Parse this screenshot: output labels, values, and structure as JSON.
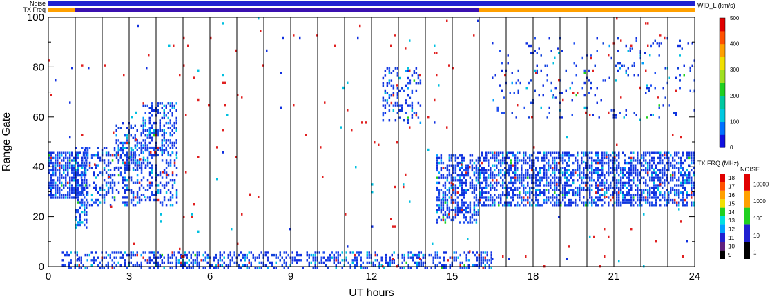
{
  "chart_data": {
    "type": "heatmap",
    "title": "",
    "xlabel": "UT hours",
    "ylabel": "Range Gate",
    "xlim": [
      0,
      24
    ],
    "ylim": [
      0,
      100
    ],
    "x_ticks": [
      0,
      3,
      6,
      9,
      12,
      15,
      18,
      21,
      24
    ],
    "y_ticks": [
      0,
      20,
      40,
      60,
      80,
      100
    ],
    "hour_dividers": [
      1,
      2,
      3,
      4,
      5,
      6,
      7,
      8,
      9,
      10,
      11,
      12,
      13,
      14,
      15,
      16,
      17,
      18,
      19,
      20,
      21,
      22,
      23
    ],
    "status_bars": [
      {
        "label": "Noise",
        "segments": [
          {
            "start": 0,
            "end": 24,
            "color": "#2020d0"
          }
        ]
      },
      {
        "label": "TX Freq",
        "segments": [
          {
            "start": 0,
            "end": 1,
            "color": "#ffa000"
          },
          {
            "start": 1,
            "end": 16,
            "color": "#3a10b0"
          },
          {
            "start": 16,
            "end": 24,
            "color": "#ffa000"
          }
        ]
      }
    ],
    "scatter_regions": [
      {
        "x": [
          0,
          1.1
        ],
        "y": [
          28,
          46
        ],
        "density": 0.75
      },
      {
        "x": [
          1.0,
          1.4
        ],
        "y": [
          16,
          48
        ],
        "density": 0.55
      },
      {
        "x": [
          1.2,
          4.8
        ],
        "y": [
          25,
          48
        ],
        "density": 0.35
      },
      {
        "x": [
          2.5,
          3.6
        ],
        "y": [
          40,
          58
        ],
        "density": 0.4
      },
      {
        "x": [
          3.5,
          4.8
        ],
        "y": [
          45,
          66
        ],
        "density": 0.45
      },
      {
        "x": [
          14.4,
          16.0
        ],
        "y": [
          18,
          45
        ],
        "density": 0.55
      },
      {
        "x": [
          16.0,
          24.0
        ],
        "y": [
          25,
          46
        ],
        "density": 0.6
      },
      {
        "x": [
          0.5,
          16.5
        ],
        "y": [
          0,
          6
        ],
        "density": 0.45
      },
      {
        "x": [
          12.4,
          13.8
        ],
        "y": [
          58,
          80
        ],
        "density": 0.25
      },
      {
        "x": [
          16.5,
          24.0
        ],
        "y": [
          60,
          92
        ],
        "density": 0.06
      },
      {
        "x": [
          0,
          24
        ],
        "y": [
          0,
          100
        ],
        "density": 0.008
      }
    ],
    "scatter_palette": [
      "#1030e0",
      "#2050f0",
      "#1040d8",
      "#00c0e0",
      "#00a0ff",
      "#e02020",
      "#20d020"
    ],
    "velocity_colorbar": {
      "label": "WID_L (km/s)",
      "range": [
        0,
        500
      ],
      "ticks": [
        0,
        100,
        200,
        300,
        400,
        500
      ],
      "colors": [
        "#1010e0",
        "#0070ff",
        "#00c8e0",
        "#00c8a0",
        "#20d020",
        "#a0e020",
        "#f0e000",
        "#ffa000",
        "#ff5000",
        "#e00000"
      ]
    },
    "freq_colorbar": {
      "label": "TX FRQ (MHz)",
      "ticks": [
        9,
        10,
        11,
        12,
        13,
        14,
        15,
        16,
        17,
        18
      ],
      "colors": [
        "#000000",
        "#602080",
        "#2020d0",
        "#00a0ff",
        "#00e0e0",
        "#20d020",
        "#f0e000",
        "#ffa000",
        "#ff5000",
        "#e00000"
      ]
    },
    "noise_colorbar": {
      "label": "NOISE",
      "ticks": [
        "1",
        "10",
        "100",
        "1000",
        "10000"
      ],
      "colors": [
        "#000000",
        "#2020d0",
        "#20d020",
        "#ffa000",
        "#e00000"
      ]
    }
  }
}
